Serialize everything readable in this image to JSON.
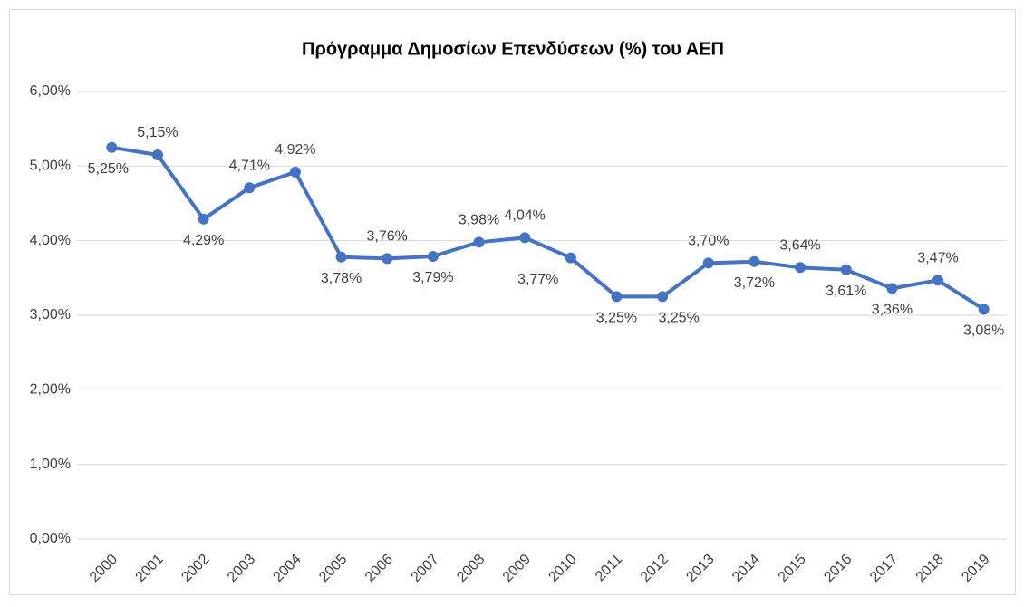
{
  "chart_data": {
    "type": "line",
    "title": "Πρόγραμμα Δημοσίων Επενδύσεων (%) του ΑΕΠ",
    "categories": [
      "2000",
      "2001",
      "2002",
      "2003",
      "2004",
      "2005",
      "2006",
      "2007",
      "2008",
      "2009",
      "2010",
      "2011",
      "2012",
      "2013",
      "2014",
      "2015",
      "2016",
      "2017",
      "2018",
      "2019"
    ],
    "series": [
      {
        "name": "Πρόγραμμα Δημοσίων Επενδύσεων (%) του ΑΕΠ",
        "color": "#4472c4",
        "values": [
          5.25,
          5.15,
          4.29,
          4.71,
          4.92,
          3.78,
          3.76,
          3.79,
          3.98,
          4.04,
          3.77,
          3.25,
          3.25,
          3.7,
          3.72,
          3.64,
          3.61,
          3.36,
          3.47,
          3.08
        ],
        "value_labels": [
          "5,25%",
          "5,15%",
          "4,29%",
          "4,71%",
          "4,92%",
          "3,78%",
          "3,76%",
          "3,79%",
          "3,98%",
          "4,04%",
          "3,77%",
          "3,25%",
          "3,25%",
          "3,70%",
          "3,72%",
          "3,64%",
          "3,61%",
          "3,36%",
          "3,47%",
          "3,08%"
        ]
      }
    ],
    "ylim": [
      0,
      6
    ],
    "yticks": [
      {
        "value": 0,
        "label": "0,00%"
      },
      {
        "value": 1,
        "label": "1,00%"
      },
      {
        "value": 2,
        "label": "2,00%"
      },
      {
        "value": 3,
        "label": "3,00%"
      },
      {
        "value": 4,
        "label": "4,00%"
      },
      {
        "value": 5,
        "label": "5,00%"
      },
      {
        "value": 6,
        "label": "6,00%"
      }
    ],
    "grid": true
  }
}
